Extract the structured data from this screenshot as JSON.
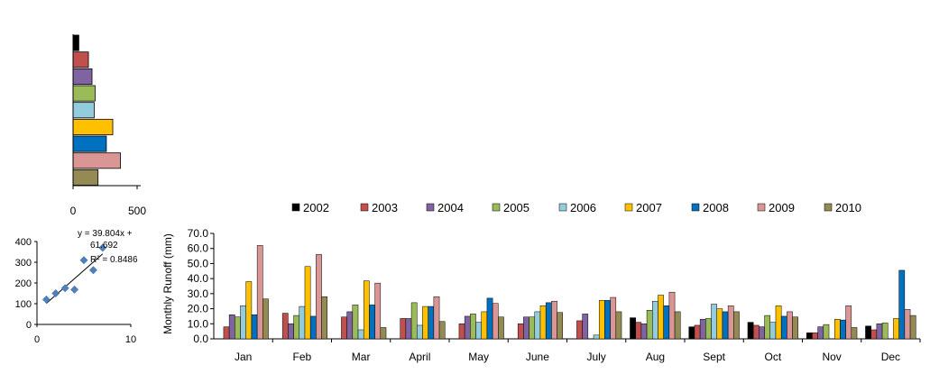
{
  "colors": {
    "2002": "#000000",
    "2003": "#c0504d",
    "2004": "#8064a2",
    "2005": "#9bbb59",
    "2006": "#93cddd",
    "2007": "#ffc000",
    "2008": "#0070c0",
    "2009": "#d99694",
    "2010": "#948a54",
    "scatter_point": "#4f81bd"
  },
  "chart_data": [
    {
      "type": "bar",
      "orientation": "horizontal",
      "xlim": [
        0,
        500
      ],
      "xticks": [
        "0",
        "500"
      ],
      "categories": [
        "2002",
        "2003",
        "2004",
        "2005",
        "2006",
        "2007",
        "2008",
        "2009",
        "2010"
      ],
      "values": [
        45,
        120,
        148,
        172,
        165,
        310,
        260,
        370,
        195
      ]
    },
    {
      "type": "scatter",
      "xlim": [
        0,
        10
      ],
      "ylim": [
        0,
        400
      ],
      "xticks": [
        "0",
        "10"
      ],
      "yticks": [
        "0",
        "100",
        "200",
        "300",
        "400"
      ],
      "points": [
        [
          1,
          120
        ],
        [
          2,
          150
        ],
        [
          3,
          175
        ],
        [
          4,
          168
        ],
        [
          5,
          310
        ],
        [
          6,
          262
        ],
        [
          7,
          370
        ]
      ],
      "trendline": {
        "slope": 39.804,
        "intercept": 61.692
      },
      "equation_lines": [
        "y = 39.804x +",
        "61.692",
        "R² = 0.8486"
      ]
    },
    {
      "type": "bar",
      "ylabel": "Monthly  Runoff (mm)",
      "ylim": [
        0,
        70
      ],
      "yticks": [
        "0.0",
        "10.0",
        "20.0",
        "30.0",
        "40.0",
        "50.0",
        "60.0",
        "70.0"
      ],
      "categories": [
        "Jan",
        "Feb",
        "Mar",
        "April",
        "May",
        "June",
        "July",
        "Aug",
        "Sept",
        "Oct",
        "Nov",
        "Dec"
      ],
      "series": [
        {
          "name": "2002",
          "values": [
            0,
            0,
            0,
            0,
            0,
            0,
            0,
            14,
            8,
            11,
            4,
            8.5
          ]
        },
        {
          "name": "2003",
          "values": [
            8,
            17,
            14.5,
            13.5,
            10,
            10,
            12,
            11,
            9,
            9,
            4,
            6
          ]
        },
        {
          "name": "2004",
          "values": [
            16,
            10,
            18,
            13.5,
            15,
            14.5,
            16.5,
            10,
            13,
            8,
            8,
            10
          ]
        },
        {
          "name": "2005",
          "values": [
            14.5,
            15.5,
            22.5,
            24,
            16.5,
            14.5,
            0,
            19,
            13.5,
            15.5,
            9.5,
            10.5
          ]
        },
        {
          "name": "2006",
          "values": [
            22,
            21.5,
            6,
            9,
            11,
            18,
            2.5,
            25,
            23,
            11,
            0,
            0
          ]
        },
        {
          "name": "2007",
          "values": [
            38,
            48,
            38.5,
            21.5,
            18,
            22,
            25.5,
            29,
            20,
            22,
            13,
            13.5
          ]
        },
        {
          "name": "2008",
          "values": [
            16,
            15,
            22.5,
            21.5,
            27,
            24,
            25.5,
            22,
            18,
            15,
            12.5,
            45.5
          ]
        },
        {
          "name": "2009",
          "values": [
            62,
            56,
            37,
            28,
            23.5,
            25,
            27.5,
            31,
            22,
            18,
            22,
            19.5
          ]
        },
        {
          "name": "2010",
          "values": [
            26.5,
            28,
            7.5,
            11.5,
            14.5,
            17.5,
            18,
            18,
            18,
            14.5,
            7.5,
            15.5
          ]
        }
      ]
    }
  ]
}
